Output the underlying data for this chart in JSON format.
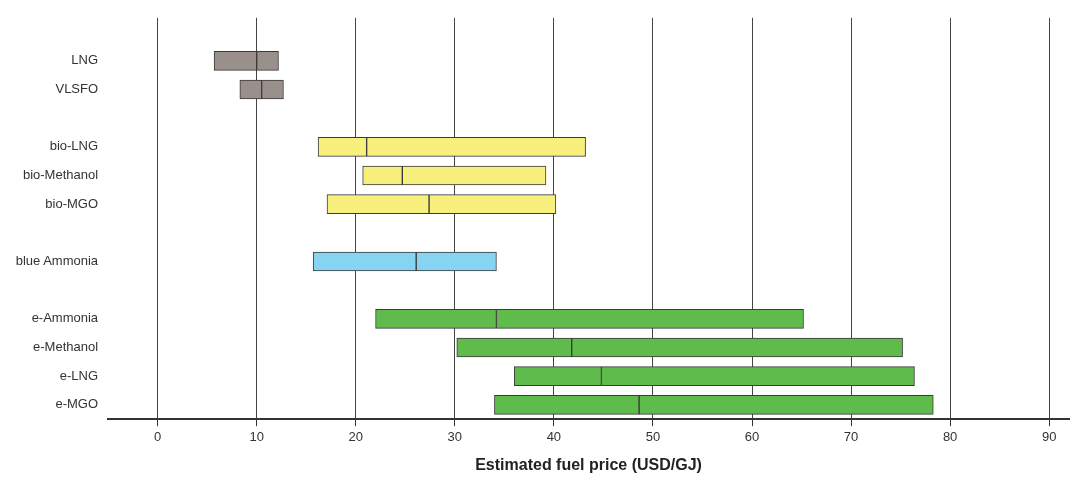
{
  "chart_data": {
    "type": "bar",
    "orientation": "horizontal",
    "xlabel": "Estimated fuel price (USD/GJ)",
    "categories": [
      null,
      "LNG",
      "VLSFO",
      null,
      "bio-LNG",
      "bio-Methanol",
      "bio-MGO",
      null,
      "blue Ammonia",
      null,
      "e-Ammonia",
      "e-Methanol",
      "e-LNG",
      "e-MGO"
    ],
    "series": [
      {
        "base": [
          null,
          5.7,
          8.3,
          null,
          16.2,
          20.7,
          17.1,
          null,
          15.7,
          null,
          22,
          30.2,
          36,
          34
        ],
        "values": [
          null,
          4.3,
          2.2,
          null,
          4.9,
          4,
          10.3,
          null,
          10.4,
          null,
          12.2,
          11.6,
          8.8,
          14.6
        ],
        "colors": [
          "#9a908b",
          "#9a908b",
          "#9a908b",
          "#9a908b",
          "#f7f07c",
          "#f7f07c",
          "#f7f07c",
          "#87d4f2",
          "#87d4f2",
          "#5fbb4b",
          "#5fbb4b",
          "#5fbb4b",
          "#5fbb4b",
          "#5fbb4b"
        ]
      },
      {
        "base": [
          null,
          10,
          10.5,
          null,
          21.1,
          24.7,
          27.4,
          null,
          26.1,
          null,
          34.2,
          41.8,
          44.8,
          48.6
        ],
        "values": [
          null,
          2.2,
          2.2,
          null,
          22.1,
          14.5,
          12.8,
          null,
          8.1,
          null,
          31,
          33.4,
          31.6,
          29.7
        ],
        "colors": [
          "#9a908b",
          "#9a908b",
          "#9a908b",
          "#9a908b",
          "#f7f07c",
          "#f7f07c",
          "#f7f07c",
          "#87d4f2",
          "#87d4f2",
          "#5fbb4b",
          "#5fbb4b",
          "#5fbb4b",
          "#5fbb4b",
          "#5fbb4b"
        ]
      }
    ],
    "xlim": [
      -5,
      92
    ],
    "xticks": [
      0,
      10,
      20,
      30,
      40,
      50,
      60,
      70,
      80,
      90
    ],
    "grid": "x",
    "legend": false
  }
}
